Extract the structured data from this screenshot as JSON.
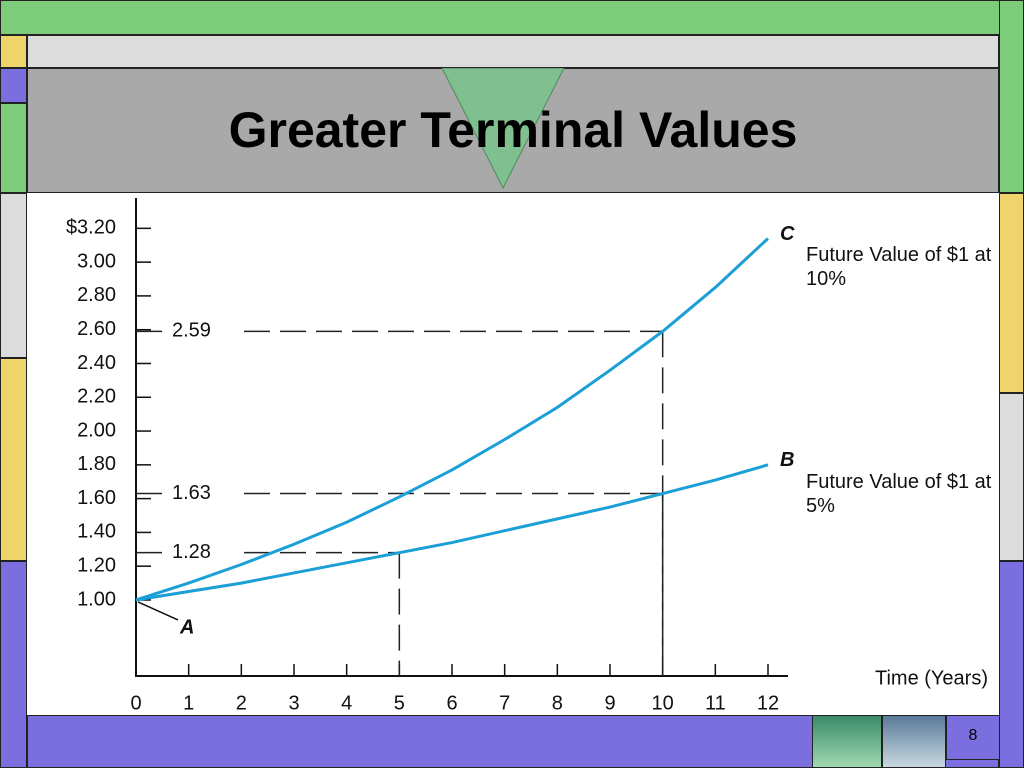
{
  "title": "Greater Terminal Values",
  "slide_number": "8",
  "chart_data": {
    "type": "line",
    "x_label": "Time (Years)",
    "origin_label": "A",
    "x": [
      0,
      1,
      2,
      3,
      4,
      5,
      6,
      7,
      8,
      9,
      10,
      11,
      12
    ],
    "series": [
      {
        "name": "Future Value of $1 at 10%",
        "letter": "C",
        "color": "#1a9fd6",
        "values": [
          1.0,
          1.1,
          1.21,
          1.33,
          1.46,
          1.61,
          1.77,
          1.95,
          2.14,
          2.36,
          2.59,
          2.85,
          3.14
        ]
      },
      {
        "name": "Future Value of $1 at 5%",
        "letter": "B",
        "color": "#1a9fd6",
        "values": [
          1.0,
          1.05,
          1.1,
          1.16,
          1.22,
          1.28,
          1.34,
          1.41,
          1.48,
          1.55,
          1.63,
          1.71,
          1.8
        ]
      }
    ],
    "reference_points": [
      {
        "x": 10,
        "y": 2.59
      },
      {
        "x": 10,
        "y": 1.63
      },
      {
        "x": 5,
        "y": 1.28
      }
    ],
    "xlim": [
      0,
      12
    ],
    "xticks": [
      0,
      1,
      2,
      3,
      4,
      5,
      6,
      7,
      8,
      9,
      10,
      11,
      12
    ],
    "ylim": [
      0.55,
      3.35
    ],
    "yticks": [
      {
        "value": 1,
        "label": "1.00"
      },
      {
        "value": 1.2,
        "label": "1.20"
      },
      {
        "value": 1.4,
        "label": "1.40"
      },
      {
        "value": 1.6,
        "label": "1.60"
      },
      {
        "value": 1.8,
        "label": "1.80"
      },
      {
        "value": 2,
        "label": "2.00"
      },
      {
        "value": 2.2,
        "label": "2.20"
      },
      {
        "value": 2.4,
        "label": "2.40"
      },
      {
        "value": 2.6,
        "label": "2.60"
      },
      {
        "value": 2.8,
        "label": "2.80"
      },
      {
        "value": 3,
        "label": "3.00"
      },
      {
        "value": 3.2,
        "label": "$3.20"
      }
    ]
  }
}
